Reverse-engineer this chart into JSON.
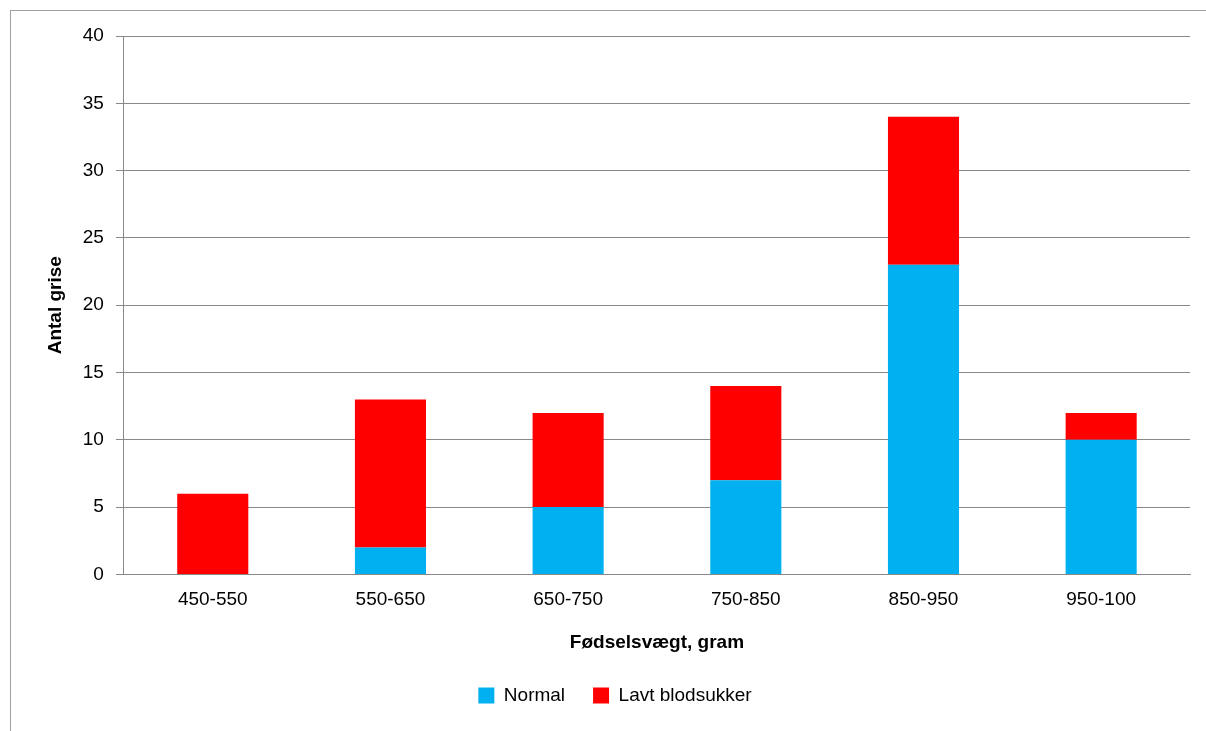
{
  "chart_data": {
    "type": "bar",
    "stacked": true,
    "xlabel": "Fødselsvægt, gram",
    "ylabel": "Antal grise",
    "categories": [
      "450-550",
      "550-650",
      "650-750",
      "750-850",
      "850-950",
      "950-100"
    ],
    "series": [
      {
        "name": "Normal",
        "color": "#00b0f0",
        "values": [
          0,
          2,
          5,
          7,
          23,
          10
        ]
      },
      {
        "name": "Lavt blodsukker",
        "color": "#ff0000",
        "values": [
          6,
          11,
          7,
          7,
          11,
          2
        ]
      }
    ],
    "ylim": [
      0,
      40
    ],
    "yticks": [
      0,
      5,
      10,
      15,
      20,
      25,
      30,
      35,
      40
    ],
    "grid": "y",
    "legend": "bottom"
  }
}
